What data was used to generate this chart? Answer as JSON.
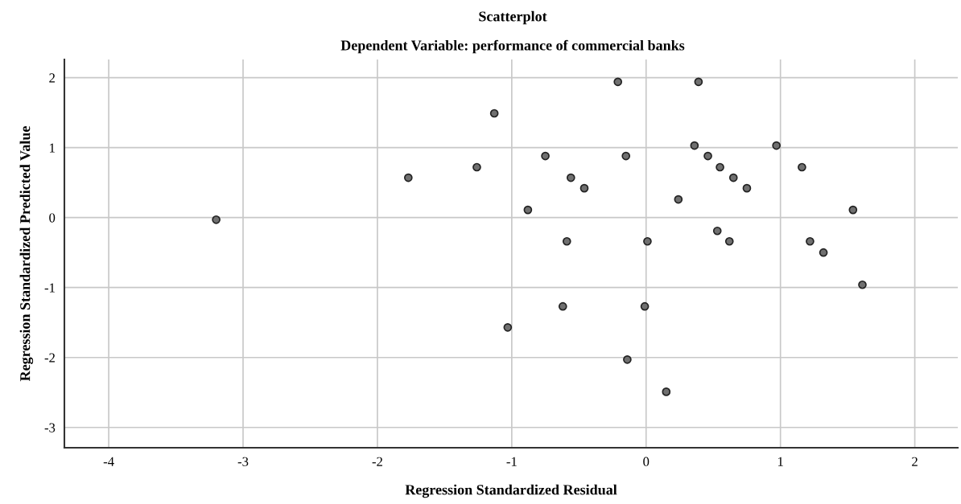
{
  "chart_data": {
    "type": "scatter",
    "title": "Scatterplot",
    "subtitle": "Dependent Variable: performance of commercial banks",
    "xlabel": "Regression Standardized Residual",
    "ylabel": "Regression Standardized Predicted Value",
    "x": [
      -3.2,
      -0.21,
      -1.13,
      -0.75,
      -0.15,
      -1.26,
      -1.77,
      -0.56,
      -0.46,
      -0.88,
      -0.59,
      0.01,
      0.39,
      0.36,
      0.97,
      0.46,
      0.55,
      1.16,
      0.65,
      0.75,
      0.24,
      1.54,
      0.53,
      0.62,
      1.22,
      1.32,
      -1.03,
      -0.62,
      -0.01,
      -0.14,
      0.15,
      1.61
    ],
    "values": [
      -0.03,
      1.94,
      1.49,
      0.88,
      0.88,
      0.72,
      0.57,
      0.57,
      0.42,
      0.11,
      -0.34,
      -0.34,
      1.94,
      1.03,
      1.03,
      0.88,
      0.72,
      0.72,
      0.57,
      0.42,
      0.26,
      0.11,
      -0.19,
      -0.34,
      -0.34,
      -0.5,
      -1.57,
      -1.27,
      -1.27,
      -2.03,
      -2.49,
      -0.96
    ],
    "color": "#707070",
    "marker": "circle",
    "xlim": [
      -4.33,
      2.32
    ],
    "xticks": [
      -4,
      -3,
      -2,
      -1,
      0,
      1,
      2
    ],
    "ylim": [
      -3.29,
      2.26
    ],
    "yticks": [
      -3,
      -2,
      -1,
      0,
      1,
      2
    ],
    "grid": true
  }
}
